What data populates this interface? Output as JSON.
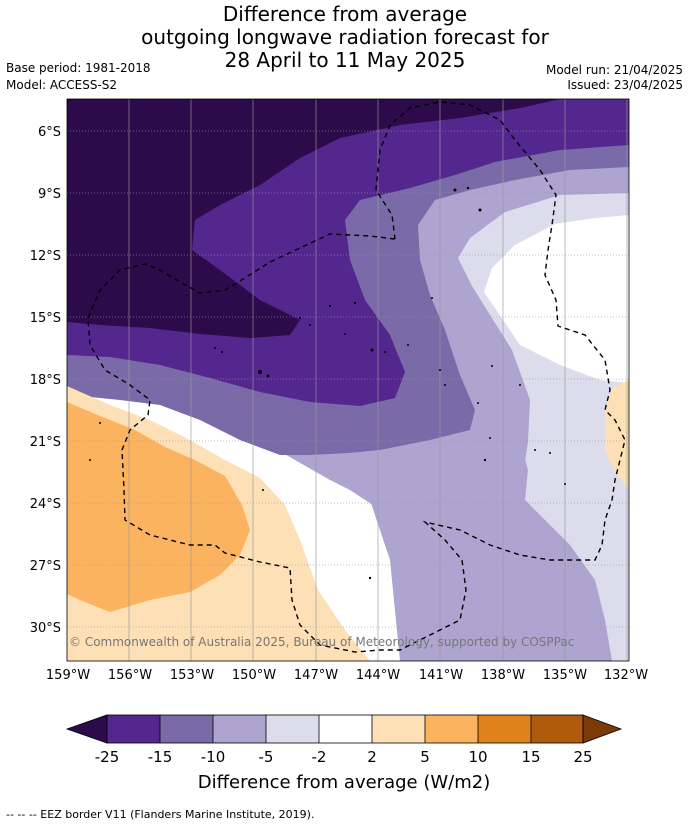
{
  "header": {
    "title_lines": [
      "Difference from average",
      "outgoing longwave radiation forecast for",
      "28 April to 11 May 2025"
    ],
    "base_period": "Base period: 1981-2018",
    "model": "Model: ACCESS-S2",
    "model_run": "Model run: 21/04/2025",
    "issued": "Issued: 23/04/2025"
  },
  "map": {
    "lat_labels": [
      "6°S",
      "9°S",
      "12°S",
      "15°S",
      "18°S",
      "21°S",
      "24°S",
      "27°S",
      "30°S"
    ],
    "lon_labels": [
      "159°W",
      "156°W",
      "153°W",
      "150°W",
      "147°W",
      "144°W",
      "141°W",
      "138°W",
      "135°W",
      "132°W"
    ],
    "copyright": "© Commonwealth of Australia 2025, Bureau of Meteorology, supported by COSPPac"
  },
  "colorbar": {
    "ticks": [
      "-25",
      "-15",
      "-10",
      "-5",
      "-2",
      "2",
      "5",
      "10",
      "15",
      "25"
    ],
    "colors": {
      "lt_25": "#2d0a4a",
      "m25_m15": "#54278f",
      "m15_m10": "#7a6ba8",
      "m10_m5": "#ada5cf",
      "m5_m2": "#dcdcec",
      "m2_2": "#ffffff",
      "p2_5": "#fde0b6",
      "p5_10": "#fbb35f",
      "p10_15": "#e0811e",
      "p15_25": "#b05a0e",
      "gt_25": "#7b3a08"
    },
    "label": "Difference from average (W/m2)"
  },
  "footer": {
    "legend_text": "--  --  -- EEZ border V11 (Flanders Marine Institute, 2019)."
  }
}
